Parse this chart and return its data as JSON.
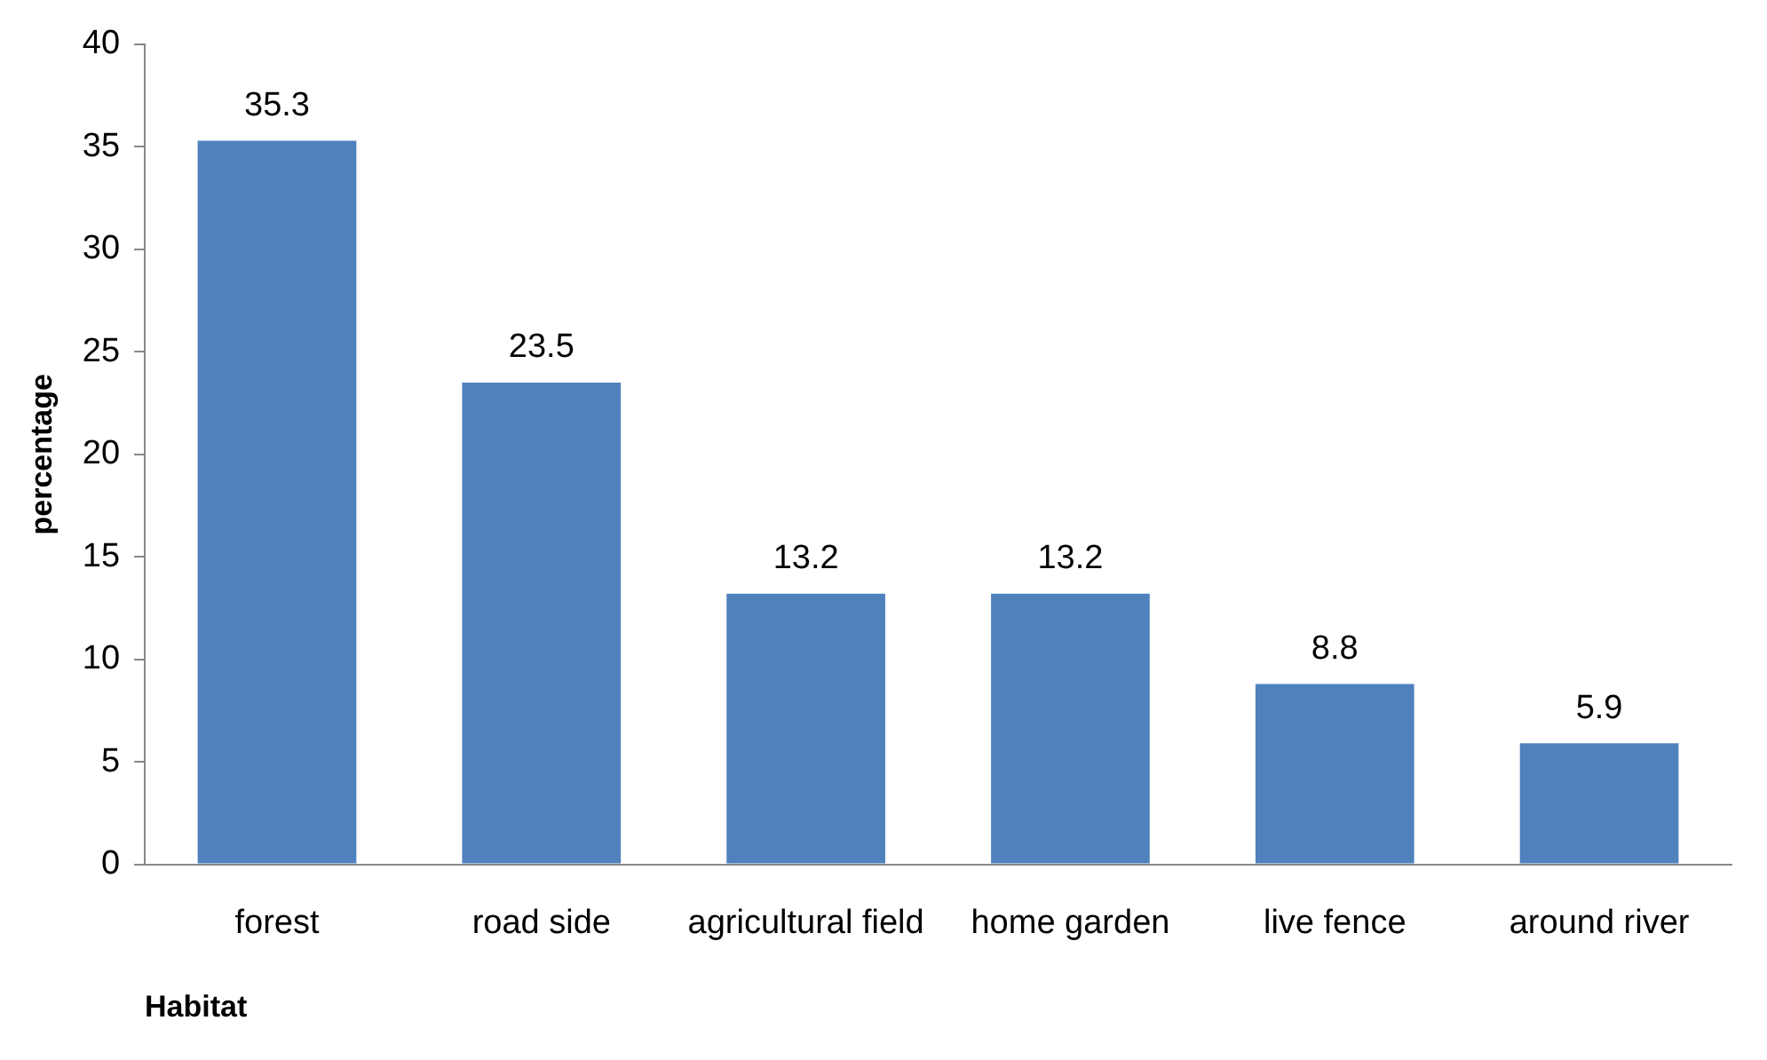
{
  "chart_data": {
    "type": "bar",
    "xlabel": "Habitat",
    "ylabel": "percentage",
    "categories": [
      "forest",
      "road side",
      "agricultural field",
      "home garden",
      "live fence",
      "around river"
    ],
    "values": [
      35.3,
      23.5,
      13.2,
      13.2,
      8.8,
      5.9
    ],
    "color": "#4f81bd",
    "ylim": [
      0,
      40
    ],
    "yticks": [
      0,
      5,
      10,
      15,
      20,
      25,
      30,
      35,
      40
    ],
    "grid": false,
    "legend": false,
    "data_labels": true
  }
}
